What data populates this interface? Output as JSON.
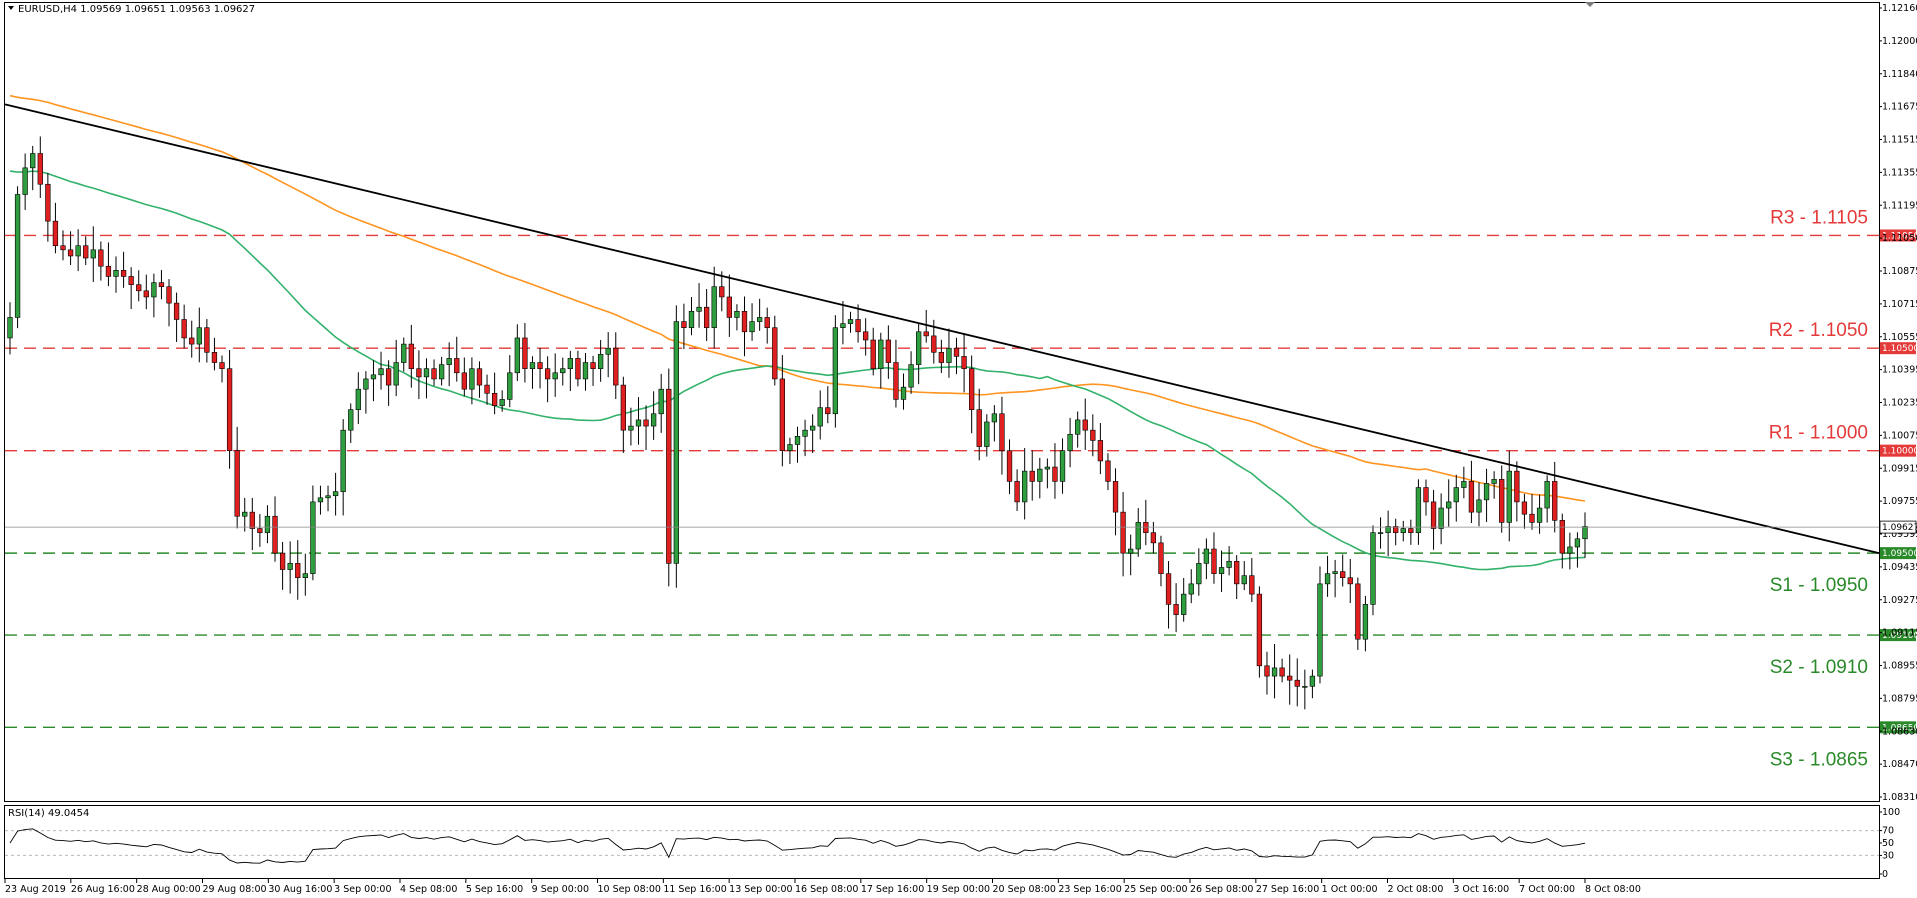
{
  "window": {
    "title": "EURUSD,H4",
    "ohlc": "1.09569 1.09651 1.09563 1.09627",
    "title_text": "EURUSD,H4  1.09569 1.09651 1.09563 1.09627"
  },
  "colors": {
    "bull": "#2f9e3f",
    "bear": "#e02020",
    "wick": "#000000",
    "ma_fast": "#33b26b",
    "ma_slow": "#ff9420",
    "trendline": "#000000",
    "resistance": "#e43a3a",
    "support": "#2a8a2a",
    "rsi_line": "#000000",
    "grid_frame": "#000000"
  },
  "price_axis": {
    "ticks": [
      "1.12160",
      "1.12000",
      "1.11840",
      "1.11675",
      "1.11515",
      "1.11355",
      "1.11195",
      "1.11050",
      "1.10875",
      "1.10715",
      "1.10555",
      "1.10395",
      "1.10235",
      "1.10075",
      "1.09915",
      "1.09755",
      "1.09595",
      "1.09435",
      "1.09275",
      "1.09115",
      "1.08955",
      "1.08795",
      "1.08630",
      "1.08470",
      "1.08310"
    ],
    "current_price": "1.09627",
    "min": 1.0831,
    "max": 1.1216
  },
  "levels": [
    {
      "name": "R3",
      "label": "R3 - 1.1105",
      "badge": "1.11050",
      "price": 1.1105,
      "kind": "resistance"
    },
    {
      "name": "R2",
      "label": "R2 - 1.1050",
      "badge": "1.10500",
      "price": 1.105,
      "kind": "resistance"
    },
    {
      "name": "R1",
      "label": "R1 - 1.1000",
      "badge": "1.10000",
      "price": 1.1,
      "kind": "resistance"
    },
    {
      "name": "S1",
      "label": "S1 - 1.0950",
      "badge": "1.09500",
      "price": 1.095,
      "kind": "support"
    },
    {
      "name": "S2",
      "label": "S2 - 1.0910",
      "badge": "1.09100",
      "price": 1.091,
      "kind": "support"
    },
    {
      "name": "S3",
      "label": "S3 - 1.0865",
      "badge": "1.08650",
      "price": 1.0865,
      "kind": "support"
    }
  ],
  "time_axis": [
    "23 Aug 2019",
    "26 Aug 16:00",
    "28 Aug 00:00",
    "29 Aug 08:00",
    "30 Aug 16:00",
    "3 Sep 00:00",
    "4 Sep 08:00",
    "5 Sep 16:00",
    "9 Sep 00:00",
    "10 Sep 08:00",
    "11 Sep 16:00",
    "13 Sep 00:00",
    "16 Sep 08:00",
    "17 Sep 16:00",
    "19 Sep 00:00",
    "20 Sep 08:00",
    "23 Sep 16:00",
    "25 Sep 00:00",
    "26 Sep 08:00",
    "27 Sep 16:00",
    "1 Oct 00:00",
    "2 Oct 08:00",
    "3 Oct 16:00",
    "7 Oct 00:00",
    "8 Oct 08:00"
  ],
  "rsi": {
    "label": "RSI(14) 49.0454",
    "ticks": [
      "100",
      "70",
      "50",
      "30",
      "0"
    ]
  },
  "chart_data": {
    "type": "candlestick",
    "symbol": "EURUSD",
    "timeframe": "H4",
    "ylim": [
      1.0831,
      1.1216
    ],
    "closes": [
      1.1065,
      1.1125,
      1.1138,
      1.1145,
      1.113,
      1.1112,
      1.11,
      1.1098,
      1.1095,
      1.11,
      1.1094,
      1.1098,
      1.109,
      1.1085,
      1.1088,
      1.1085,
      1.1081,
      1.1078,
      1.1075,
      1.1082,
      1.108,
      1.1072,
      1.1064,
      1.1055,
      1.1052,
      1.106,
      1.1048,
      1.1043,
      1.104,
      1.1,
      1.0968,
      1.097,
      1.0962,
      1.096,
      1.0968,
      1.095,
      1.0942,
      1.0945,
      1.0938,
      1.094,
      1.0975,
      1.0977,
      1.0978,
      1.098,
      1.101,
      1.102,
      1.103,
      1.1035,
      1.1037,
      1.104,
      1.1032,
      1.1043,
      1.1052,
      1.104,
      1.1036,
      1.104,
      1.1035,
      1.1042,
      1.1045,
      1.1038,
      1.103,
      1.104,
      1.1032,
      1.1028,
      1.1022,
      1.1025,
      1.1038,
      1.1055,
      1.104,
      1.1043,
      1.104,
      1.1035,
      1.1038,
      1.104,
      1.1045,
      1.1035,
      1.1043,
      1.104,
      1.1047,
      1.105,
      1.1032,
      1.101,
      1.1012,
      1.1015,
      1.1012,
      1.1018,
      1.103,
      1.0945,
      1.1063,
      1.106,
      1.1068,
      1.107,
      1.106,
      1.108,
      1.1075,
      1.1065,
      1.1068,
      1.1058,
      1.1063,
      1.1065,
      1.106,
      1.1035,
      1.1,
      1.1003,
      1.1007,
      1.101,
      1.1012,
      1.1021,
      1.1018,
      1.106,
      1.1062,
      1.1064,
      1.1058,
      1.1054,
      1.104,
      1.1054,
      1.1043,
      1.1025,
      1.1031,
      1.1042,
      1.1058,
      1.1056,
      1.1048,
      1.1043,
      1.105,
      1.1046,
      1.104,
      1.102,
      1.1002,
      1.1014,
      1.1018,
      1.1,
      1.0985,
      1.0975,
      1.099,
      1.0985,
      1.0991,
      1.0992,
      1.0985,
      1.1,
      1.1008,
      1.1015,
      1.101,
      1.1005,
      1.0995,
      1.0985,
      1.097,
      1.095,
      1.0952,
      1.0965,
      1.096,
      1.0955,
      1.094,
      1.0925,
      1.092,
      1.093,
      1.0935,
      1.0945,
      1.0952,
      1.094,
      1.0943,
      1.0946,
      1.0935,
      1.0939,
      1.093,
      1.0895,
      1.089,
      1.0894,
      1.089,
      1.0888,
      1.0885,
      1.0885,
      1.089,
      1.0935,
      1.094,
      1.0941,
      1.0938,
      1.0935,
      1.0908,
      1.0925,
      1.096,
      1.096,
      1.0963,
      1.096,
      1.0962,
      1.096,
      1.0982,
      1.0975,
      1.0962,
      1.0972,
      1.0975,
      1.0982,
      1.0985,
      1.097,
      1.0976,
      1.0984,
      1.0986,
      1.0965,
      1.099,
      1.0975,
      1.0969,
      1.0965,
      1.0972,
      1.0985,
      1.0966,
      1.095,
      1.0953,
      1.0957,
      1.0963
    ],
    "moving_averages": [
      {
        "type": "ma_fast",
        "color": "#33b26b"
      },
      {
        "type": "ma_slow",
        "color": "#ff9420"
      }
    ],
    "levels": {
      "R3": 1.1105,
      "R2": 1.105,
      "R1": 1.1,
      "S1": 1.095,
      "S2": 1.091,
      "S3": 1.0865
    }
  }
}
